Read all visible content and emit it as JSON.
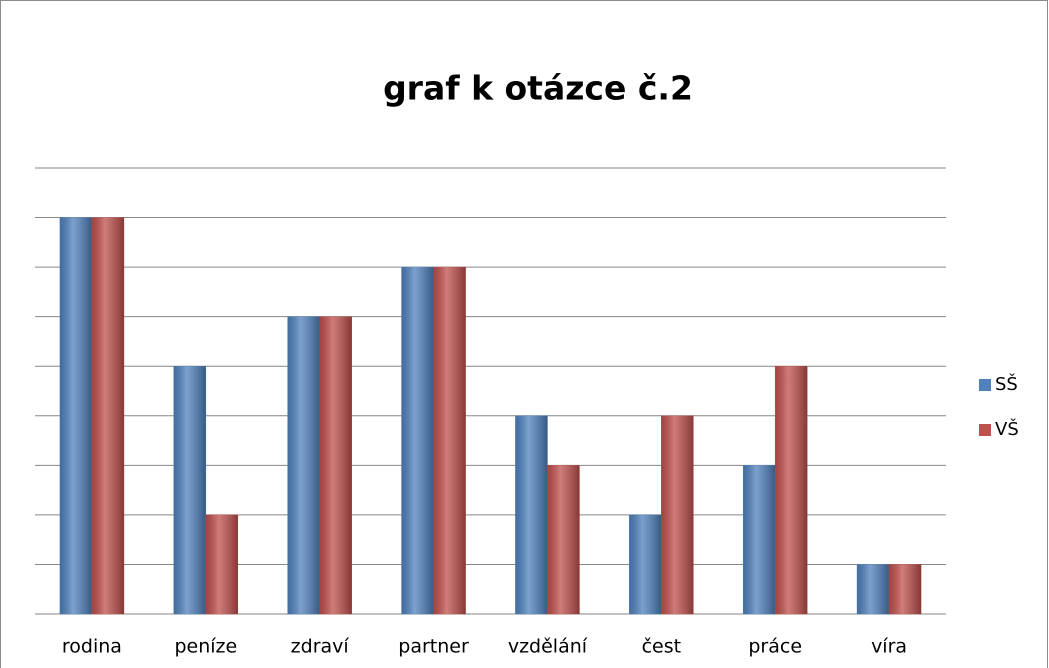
{
  "chart_data": {
    "type": "bar",
    "title": "graf k otázce č.2",
    "categories": [
      "rodina",
      "peníze",
      "zdraví",
      "partner",
      "vzdělání",
      "čest",
      "práce",
      "víra"
    ],
    "series": [
      {
        "name": "SŠ",
        "color": "#4f81bd",
        "values": [
          8,
          5,
          6,
          7,
          4,
          2,
          3,
          1
        ]
      },
      {
        "name": "VŠ",
        "color": "#c0504d",
        "values": [
          8,
          2,
          6,
          7,
          3,
          4,
          5,
          1
        ]
      }
    ],
    "ylim": [
      0,
      9
    ],
    "yticks": [
      0,
      1,
      2,
      3,
      4,
      5,
      6,
      7,
      8,
      9
    ],
    "grid": true,
    "legend": "right"
  }
}
